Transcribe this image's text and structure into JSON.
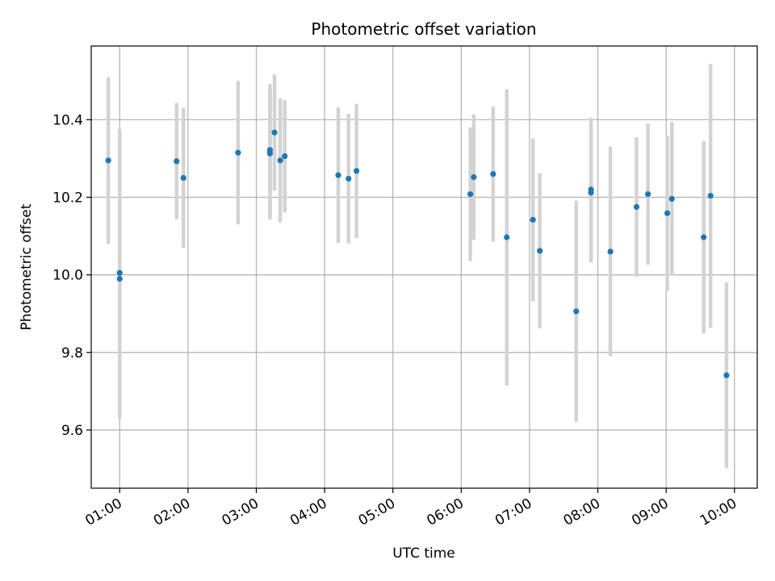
{
  "chart_data": {
    "type": "scatter",
    "title": "Photometric offset variation",
    "xlabel": "UTC time",
    "ylabel": "Photometric offset",
    "x_ticks": [
      "01:00",
      "02:00",
      "03:00",
      "04:00",
      "05:00",
      "06:00",
      "07:00",
      "08:00",
      "09:00",
      "10:00"
    ],
    "y_ticks": [
      "9.6",
      "9.8",
      "10.0",
      "10.2",
      "10.4"
    ],
    "xlim": [
      "00:35",
      "10:20"
    ],
    "ylim": [
      9.45,
      10.59
    ],
    "grid": true,
    "colors": {
      "point": "#1f77b4",
      "errorbar": "#d3d3d3",
      "grid": "#b0b0b0"
    },
    "series": [
      {
        "points": [
          {
            "x": "00:50",
            "y": 10.295,
            "err": 0.215
          },
          {
            "x": "01:00",
            "y": 10.005,
            "err": 0.37
          },
          {
            "x": "01:00",
            "y": 9.99,
            "err": 0.36
          },
          {
            "x": "01:50",
            "y": 10.293,
            "err": 0.15
          },
          {
            "x": "01:56",
            "y": 10.25,
            "err": 0.18
          },
          {
            "x": "02:44",
            "y": 10.315,
            "err": 0.185
          },
          {
            "x": "03:12",
            "y": 10.322,
            "err": 0.17
          },
          {
            "x": "03:12",
            "y": 10.313,
            "err": 0.17
          },
          {
            "x": "03:16",
            "y": 10.367,
            "err": 0.15
          },
          {
            "x": "03:21",
            "y": 10.295,
            "err": 0.16
          },
          {
            "x": "03:25",
            "y": 10.306,
            "err": 0.145
          },
          {
            "x": "04:12",
            "y": 10.257,
            "err": 0.175
          },
          {
            "x": "04:21",
            "y": 10.248,
            "err": 0.167
          },
          {
            "x": "04:28",
            "y": 10.268,
            "err": 0.173
          },
          {
            "x": "06:08",
            "y": 10.208,
            "err": 0.172
          },
          {
            "x": "06:11",
            "y": 10.252,
            "err": 0.162
          },
          {
            "x": "06:28",
            "y": 10.26,
            "err": 0.174
          },
          {
            "x": "06:40",
            "y": 10.097,
            "err": 0.382
          },
          {
            "x": "07:03",
            "y": 10.142,
            "err": 0.21
          },
          {
            "x": "07:09",
            "y": 10.062,
            "err": 0.2
          },
          {
            "x": "07:41",
            "y": 9.906,
            "err": 0.285
          },
          {
            "x": "07:54",
            "y": 10.22,
            "err": 0.185
          },
          {
            "x": "07:54",
            "y": 10.212,
            "err": 0.18
          },
          {
            "x": "08:11",
            "y": 10.06,
            "err": 0.27
          },
          {
            "x": "08:34",
            "y": 10.175,
            "err": 0.18
          },
          {
            "x": "08:44",
            "y": 10.208,
            "err": 0.182
          },
          {
            "x": "09:01",
            "y": 10.159,
            "err": 0.2
          },
          {
            "x": "09:05",
            "y": 10.196,
            "err": 0.198
          },
          {
            "x": "09:33",
            "y": 10.097,
            "err": 0.248
          },
          {
            "x": "09:39",
            "y": 10.204,
            "err": 0.34
          },
          {
            "x": "09:53",
            "y": 9.741,
            "err": 0.24
          }
        ]
      }
    ]
  }
}
